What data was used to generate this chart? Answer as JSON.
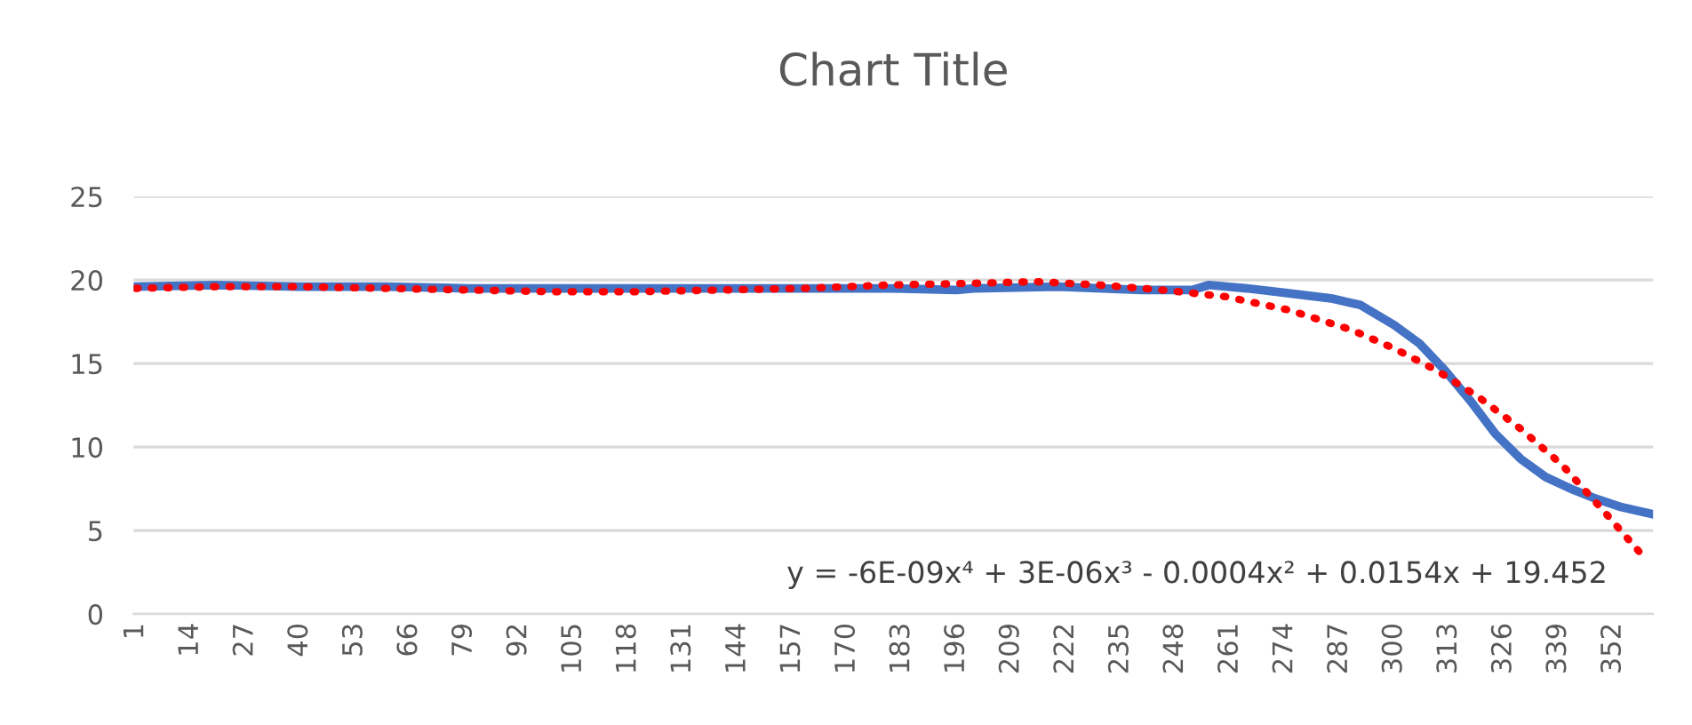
{
  "chart_data": {
    "type": "line",
    "title": "Chart Title",
    "xlim": [
      0.5,
      361.5
    ],
    "xticks": [
      1,
      14,
      27,
      40,
      53,
      66,
      79,
      92,
      105,
      118,
      131,
      144,
      157,
      170,
      183,
      196,
      209,
      222,
      235,
      248,
      261,
      274,
      287,
      300,
      313,
      326,
      339,
      352
    ],
    "ylim": [
      0,
      25
    ],
    "yticks": [
      0,
      5,
      10,
      15,
      20,
      25
    ],
    "grid": "y",
    "legend": false,
    "series": [
      {
        "color": "#4472c4",
        "line_style": "solid",
        "x": [
          1,
          20,
          40,
          60,
          80,
          100,
          120,
          140,
          160,
          180,
          196,
          200,
          220,
          240,
          252,
          256,
          265,
          275,
          285,
          292,
          300,
          306,
          312,
          318,
          324,
          330,
          336,
          342,
          348,
          354,
          361
        ],
        "values": [
          19.6,
          19.7,
          19.6,
          19.6,
          19.5,
          19.5,
          19.5,
          19.5,
          19.5,
          19.5,
          19.4,
          19.5,
          19.6,
          19.4,
          19.4,
          19.7,
          19.5,
          19.2,
          18.9,
          18.5,
          17.3,
          16.2,
          14.6,
          12.8,
          10.8,
          9.3,
          8.2,
          7.5,
          6.9,
          6.4,
          6.0
        ]
      },
      {
        "type": "line",
        "color": "#ff0000",
        "line_style": "dotted",
        "x": [
          1,
          20,
          40,
          60,
          80,
          100,
          120,
          140,
          160,
          180,
          200,
          215,
          230,
          245,
          260,
          275,
          290,
          300,
          310,
          320,
          330,
          340,
          350,
          359
        ],
        "values": [
          19.5,
          19.6,
          19.6,
          19.5,
          19.4,
          19.3,
          19.3,
          19.4,
          19.5,
          19.7,
          19.8,
          19.9,
          19.7,
          19.4,
          19.0,
          18.2,
          17.0,
          15.9,
          14.6,
          13.0,
          11.1,
          8.9,
          6.1,
          3.5
        ]
      }
    ],
    "annotations": [
      "y = -6E-09x⁴ + 3E-06x³ - 0.0004x² + 0.0154x + 19.452"
    ]
  }
}
